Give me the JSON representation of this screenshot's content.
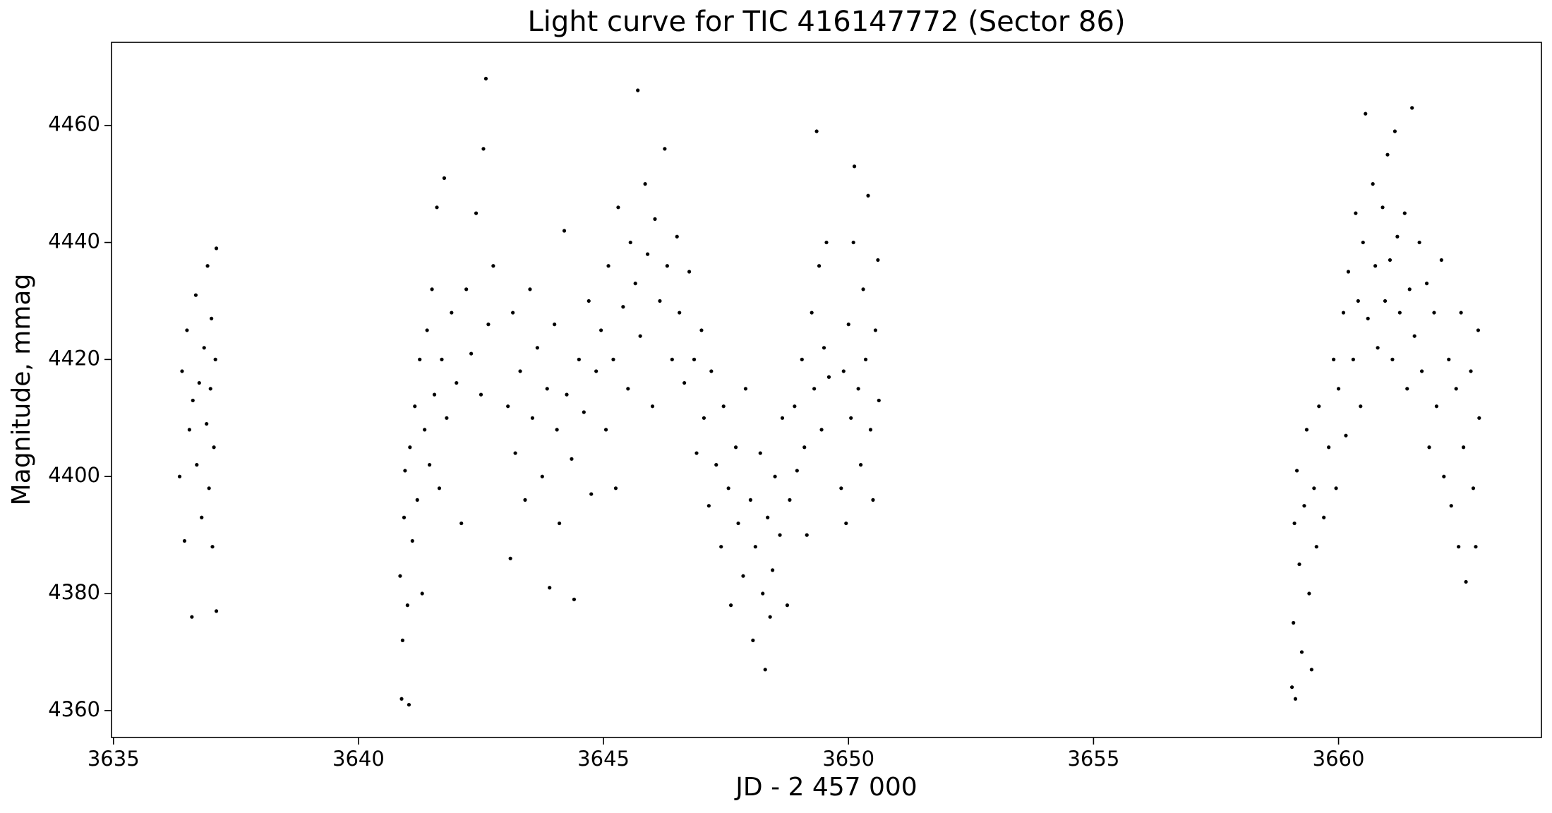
{
  "chart_data": {
    "type": "scatter",
    "title": "Light curve for TIC 416147772 (Sector 86)",
    "xlabel": "JD - 2 457 000",
    "ylabel": "Magnitude, mmag",
    "color": "#000000",
    "xlim": [
      3634.96,
      3664.14
    ],
    "ylim": [
      4355.4,
      4474.2
    ],
    "xticks": [
      3635,
      3640,
      3645,
      3650,
      3655,
      3660
    ],
    "yticks": [
      4360,
      4380,
      4400,
      4420,
      4440,
      4460
    ],
    "x": [
      3636.35,
      3636.4,
      3636.45,
      3636.5,
      3636.55,
      3636.6,
      3636.62,
      3636.68,
      3636.7,
      3636.75,
      3636.8,
      3636.85,
      3636.9,
      3636.92,
      3636.95,
      3636.98,
      3637.0,
      3637.02,
      3637.05,
      3637.08,
      3637.1,
      3637.1,
      3640.85,
      3640.88,
      3640.9,
      3640.93,
      3640.95,
      3641.0,
      3641.03,
      3641.05,
      3641.1,
      3641.15,
      3641.2,
      3641.25,
      3641.3,
      3641.35,
      3641.4,
      3641.45,
      3641.5,
      3641.55,
      3641.6,
      3641.65,
      3641.7,
      3641.75,
      3641.8,
      3641.9,
      3642.0,
      3642.1,
      3642.2,
      3642.3,
      3642.4,
      3642.5,
      3642.55,
      3642.6,
      3642.65,
      3642.75,
      3643.05,
      3643.1,
      3643.15,
      3643.2,
      3643.3,
      3643.4,
      3643.5,
      3643.55,
      3643.65,
      3643.75,
      3643.85,
      3643.9,
      3644.0,
      3644.05,
      3644.1,
      3644.2,
      3644.25,
      3644.35,
      3644.4,
      3644.5,
      3644.6,
      3644.7,
      3644.75,
      3644.85,
      3644.95,
      3645.05,
      3645.1,
      3645.2,
      3645.25,
      3645.3,
      3645.4,
      3645.5,
      3645.55,
      3645.65,
      3645.7,
      3645.75,
      3645.85,
      3645.9,
      3646.0,
      3646.05,
      3646.15,
      3646.25,
      3646.3,
      3646.4,
      3646.5,
      3646.55,
      3646.65,
      3646.75,
      3646.85,
      3646.9,
      3647.0,
      3647.05,
      3647.15,
      3647.2,
      3647.3,
      3647.4,
      3647.45,
      3647.55,
      3647.6,
      3647.7,
      3647.75,
      3647.85,
      3647.9,
      3648.0,
      3648.05,
      3648.1,
      3648.2,
      3648.25,
      3648.3,
      3648.35,
      3648.4,
      3648.45,
      3648.5,
      3648.6,
      3648.65,
      3648.75,
      3648.8,
      3648.9,
      3648.95,
      3649.05,
      3649.1,
      3649.15,
      3649.25,
      3649.3,
      3649.35,
      3649.4,
      3649.45,
      3649.5,
      3649.55,
      3649.6,
      3649.85,
      3649.9,
      3649.95,
      3650.0,
      3650.05,
      3650.1,
      3650.12,
      3650.2,
      3650.25,
      3650.3,
      3650.35,
      3650.4,
      3650.45,
      3650.5,
      3650.55,
      3650.6,
      3650.62,
      3659.05,
      3659.08,
      3659.1,
      3659.12,
      3659.15,
      3659.2,
      3659.25,
      3659.3,
      3659.35,
      3659.4,
      3659.45,
      3659.5,
      3659.55,
      3659.6,
      3659.7,
      3659.8,
      3659.9,
      3659.95,
      3660.0,
      3660.1,
      3660.15,
      3660.2,
      3660.3,
      3660.35,
      3660.4,
      3660.45,
      3660.5,
      3660.55,
      3660.6,
      3660.7,
      3660.75,
      3660.8,
      3660.9,
      3660.95,
      3661.0,
      3661.05,
      3661.1,
      3661.15,
      3661.2,
      3661.25,
      3661.35,
      3661.4,
      3661.45,
      3661.5,
      3661.55,
      3661.65,
      3661.7,
      3661.8,
      3661.85,
      3661.95,
      3662.0,
      3662.1,
      3662.15,
      3662.25,
      3662.3,
      3662.4,
      3662.45,
      3662.5,
      3662.55,
      3662.6,
      3662.7,
      3662.75,
      3662.8,
      3662.85,
      3662.87
    ],
    "values": [
      4400,
      4418,
      4389,
      4425,
      4408,
      4376,
      4413,
      4431,
      4402,
      4416,
      4393,
      4422,
      4409,
      4436,
      4398,
      4415,
      4427,
      4388,
      4405,
      4420,
      4377,
      4439,
      4383,
      4362,
      4372,
      4393,
      4401,
      4378,
      4361,
      4405,
      4389,
      4412,
      4396,
      4420,
      4380,
      4408,
      4425,
      4402,
      4432,
      4414,
      4446,
      4398,
      4420,
      4451,
      4410,
      4428,
      4416,
      4392,
      4432,
      4421,
      4445,
      4414,
      4456,
      4468,
      4426,
      4436,
      4412,
      4386,
      4428,
      4404,
      4418,
      4396,
      4432,
      4410,
      4422,
      4400,
      4415,
      4381,
      4426,
      4408,
      4392,
      4442,
      4414,
      4403,
      4379,
      4420,
      4411,
      4430,
      4397,
      4418,
      4425,
      4408,
      4436,
      4420,
      4398,
      4446,
      4429,
      4415,
      4440,
      4433,
      4466,
      4424,
      4450,
      4438,
      4412,
      4444,
      4430,
      4456,
      4436,
      4420,
      4441,
      4428,
      4416,
      4435,
      4420,
      4404,
      4425,
      4410,
      4395,
      4418,
      4402,
      4388,
      4412,
      4398,
      4378,
      4405,
      4392,
      4383,
      4415,
      4396,
      4372,
      4388,
      4404,
      4380,
      4367,
      4393,
      4376,
      4384,
      4400,
      4390,
      4410,
      4378,
      4396,
      4412,
      4401,
      4420,
      4405,
      4390,
      4428,
      4415,
      4459,
      4436,
      4408,
      4422,
      4440,
      4417,
      4398,
      4418,
      4392,
      4426,
      4410,
      4440,
      4453,
      4415,
      4402,
      4432,
      4420,
      4448,
      4408,
      4396,
      4425,
      4437,
      4413,
      4364,
      4375,
      4392,
      4362,
      4401,
      4385,
      4370,
      4395,
      4408,
      4380,
      4367,
      4398,
      4388,
      4412,
      4393,
      4405,
      4420,
      4398,
      4415,
      4428,
      4407,
      4435,
      4420,
      4445,
      4430,
      4412,
      4440,
      4462,
      4427,
      4450,
      4436,
      4422,
      4446,
      4430,
      4455,
      4437,
      4420,
      4459,
      4441,
      4428,
      4445,
      4415,
      4432,
      4463,
      4424,
      4440,
      4418,
      4433,
      4405,
      4428,
      4412,
      4437,
      4400,
      4420,
      4395,
      4415,
      4388,
      4428,
      4405,
      4382,
      4418,
      4398,
      4388,
      4425,
      4410
    ]
  }
}
